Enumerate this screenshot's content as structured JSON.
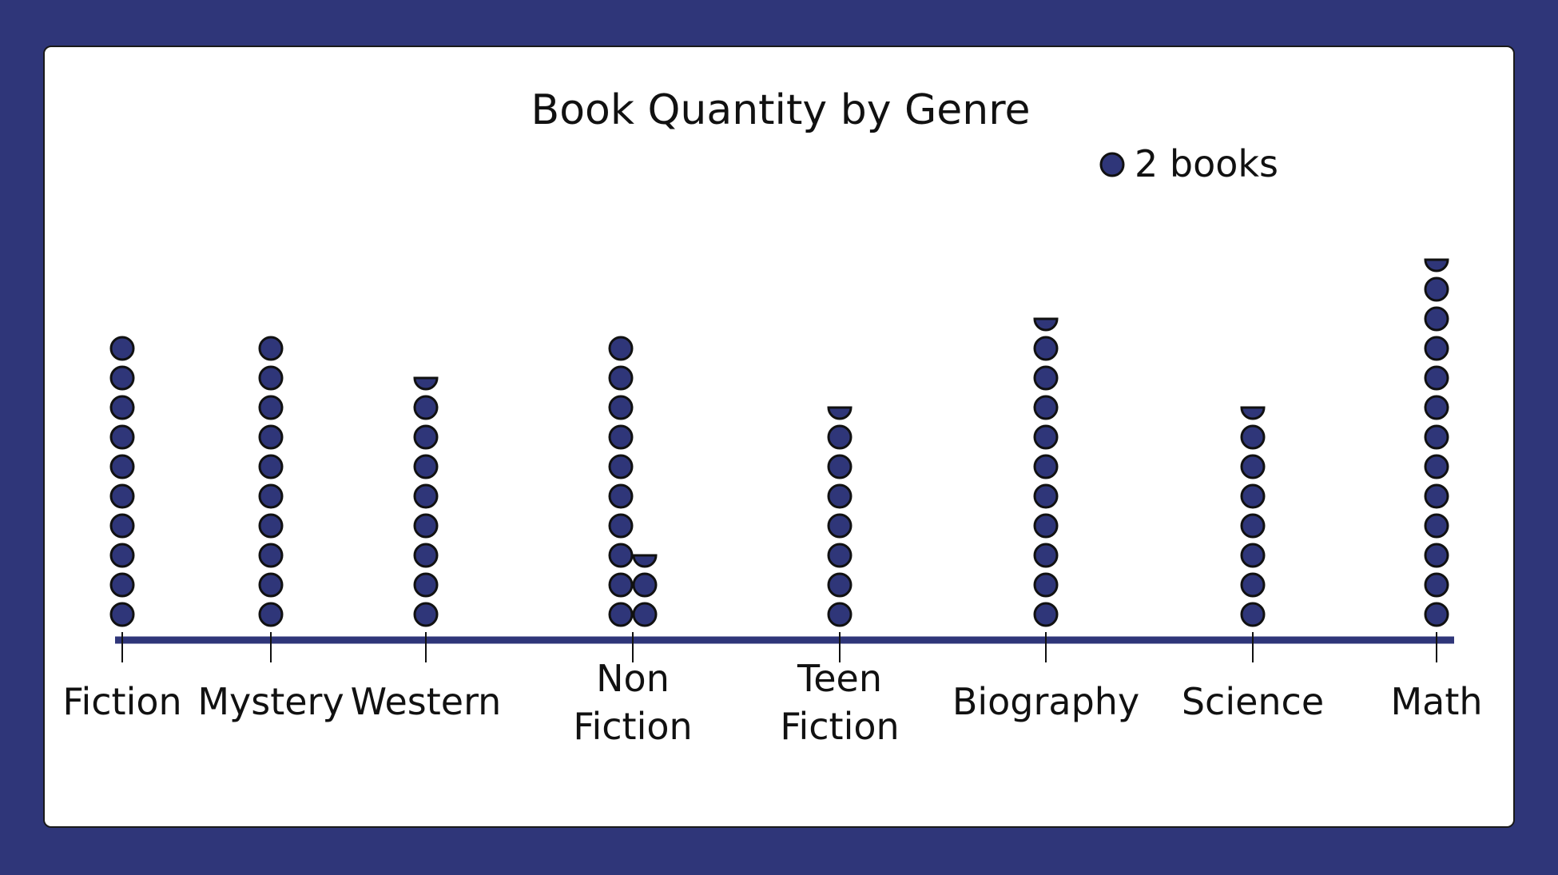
{
  "chart_data": {
    "type": "pictograph",
    "title": "Book Quantity by Genre",
    "legend": {
      "symbol": "circle",
      "label": "2 books",
      "books_per_symbol": 2
    },
    "categories": [
      "Fiction",
      "Mystery",
      "Western",
      "Non Fiction",
      "Teen Fiction",
      "Biography",
      "Science",
      "Math"
    ],
    "category_label_lines": [
      [
        "Fiction"
      ],
      [
        "Mystery"
      ],
      [
        "Western"
      ],
      [
        "Non",
        "Fiction"
      ],
      [
        "Teen",
        "Fiction"
      ],
      [
        "Biography"
      ],
      [
        "Science"
      ],
      [
        "Math"
      ]
    ],
    "values": [
      20,
      20,
      17,
      25,
      15,
      21,
      15,
      25
    ],
    "symbol_counts": [
      10,
      10,
      8.5,
      12.5,
      7.5,
      10.5,
      7.5,
      12.5
    ],
    "colors": {
      "symbol": "#2f3679",
      "symbol_outline": "#111111",
      "axis": "#2f3679",
      "frame": "#2f3679"
    }
  }
}
